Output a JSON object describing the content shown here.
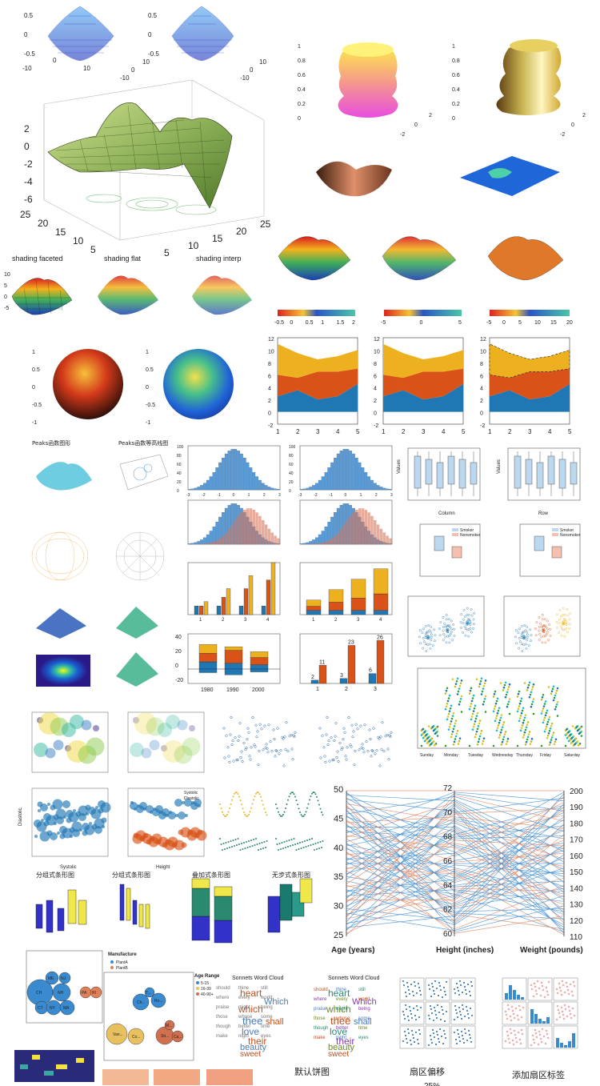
{
  "chart_data": [
    {
      "type": "surface",
      "panel": "mesh-pair-top-left",
      "z_ticks": [
        "0.5",
        "0",
        "-0.5"
      ],
      "x_ticks": [
        "-10",
        "0",
        "10"
      ],
      "y_ticks": [
        "-10",
        "0",
        "10"
      ]
    },
    {
      "type": "surface",
      "panel": "big-peaks-surface-with-contour",
      "z_ticks": [
        "2",
        "0",
        "-2",
        "-4",
        "-6"
      ],
      "y_ticks": [
        "25",
        "20",
        "15",
        "10",
        "5"
      ],
      "x_ticks": [
        "5",
        "10",
        "15",
        "20",
        "25"
      ]
    },
    {
      "type": "surface",
      "panel": "shading-modes",
      "titles": [
        "shading faceted",
        "shading flat",
        "shading interp"
      ],
      "z_ticks": [
        "10",
        "5",
        "0",
        "-5"
      ]
    },
    {
      "type": "surface",
      "panel": "spheres",
      "z_ticks": [
        "1",
        "0.5",
        "0",
        "-0.5",
        "-1"
      ]
    },
    {
      "type": "surface",
      "panel": "revolution-surfaces",
      "z_ticks": [
        "1",
        "0.8",
        "0.6",
        "0.4",
        "0.2",
        "0"
      ],
      "x_ticks": [
        "-2",
        "0",
        "2"
      ]
    },
    {
      "type": "surface",
      "panel": "peaks-colorbars",
      "colorbars": [
        [
          "-0.5",
          "0",
          "0.5",
          "1",
          "1.5",
          "2"
        ],
        [
          "-5",
          "0",
          "5"
        ],
        [
          "-5",
          "0",
          "5",
          "10",
          "15",
          "20"
        ]
      ]
    },
    {
      "type": "area",
      "panel": "stacked-area-x3",
      "categories": [
        1,
        2,
        3,
        4,
        5
      ],
      "ylim": [
        -2,
        12
      ],
      "y_ticks": [
        "12",
        "10",
        "8",
        "6",
        "4",
        "2",
        "0",
        "-2"
      ],
      "series": [
        {
          "values": [
            2.5,
            3.5,
            2,
            2.5,
            4.5
          ]
        },
        {
          "values": [
            3.5,
            2,
            4.5,
            4,
            2.5
          ]
        },
        {
          "values": [
            5,
            4,
            2,
            2.5,
            3
          ]
        }
      ]
    },
    {
      "type": "surface",
      "panel": "peaks-small",
      "titles": [
        "Peaks函数图形",
        "Peaks函数等高线图"
      ]
    },
    {
      "type": "histogram",
      "panel": "normal-histograms",
      "y_ticks": [
        "100",
        "80",
        "60",
        "40",
        "20",
        "0"
      ],
      "x_ticks": [
        "-3",
        "-2",
        "-1",
        "0",
        "1",
        "2",
        "3"
      ]
    },
    {
      "type": "box",
      "panel": "boxplots",
      "x_labels": [
        "Column",
        "Row"
      ],
      "y_label": "Values",
      "legend": [
        "Smoker",
        "Nonsmoker"
      ]
    },
    {
      "type": "bar",
      "panel": "grouped-bar-1",
      "categories": [
        "1",
        "2",
        "3",
        "4"
      ],
      "series": [
        {
          "values": [
            2,
            2,
            2,
            2
          ]
        },
        {
          "values": [
            2,
            4,
            6,
            8
          ]
        },
        {
          "values": [
            3,
            6,
            9,
            12
          ]
        }
      ],
      "ylim": [
        0,
        12
      ]
    },
    {
      "type": "bar",
      "panel": "stacked-bar-1",
      "categories": [
        "1",
        "2",
        "3",
        "4"
      ],
      "series": [
        {
          "values": [
            2,
            2,
            2,
            2
          ]
        },
        {
          "values": [
            2,
            4,
            6,
            8
          ]
        },
        {
          "values": [
            3,
            6,
            9,
            12
          ]
        }
      ],
      "ylim": [
        0,
        25
      ]
    },
    {
      "type": "bar",
      "panel": "stacked-bar-negative",
      "categories": [
        "1980",
        "1990",
        "2000"
      ],
      "x_ticks": [
        "1980",
        "1990",
        "2000"
      ],
      "y_ticks": [
        "40",
        "20",
        "0",
        "-20"
      ]
    },
    {
      "type": "bar",
      "panel": "labeled-grouped-bar",
      "categories": [
        "1",
        "2",
        "3"
      ],
      "series": [
        {
          "values": [
            2,
            3,
            6
          ]
        },
        {
          "values": [
            11,
            23,
            26
          ]
        }
      ],
      "data_labels": [
        "2",
        "11",
        "3",
        "23",
        "6",
        "26"
      ],
      "ylim": [
        0,
        30
      ]
    },
    {
      "type": "scatter",
      "panel": "swarm-by-day",
      "categories": [
        "Sunday",
        "Monday",
        "Tuesday",
        "Wednesday",
        "Thursday",
        "Friday",
        "Saturday"
      ]
    },
    {
      "type": "scatter",
      "panel": "bubble-charts",
      "x_labels": [
        "Systolic",
        "Height"
      ],
      "y_label": "Diastolic",
      "legend": [
        "Systolic",
        "Diastolic"
      ]
    },
    {
      "type": "line",
      "panel": "parallel-coordinates",
      "axes": [
        "Age (years)",
        "Height (inches)",
        "Weight (pounds)"
      ],
      "age_ticks": [
        "50",
        "45",
        "40",
        "35",
        "30",
        "25"
      ],
      "height_ticks": [
        "72",
        "70",
        "68",
        "66",
        "64",
        "62",
        "60"
      ],
      "weight_ticks": [
        "200",
        "190",
        "180",
        "170",
        "160",
        "150",
        "140",
        "130",
        "120",
        "110"
      ]
    },
    {
      "type": "bar3",
      "panel": "3d-bars",
      "titles": [
        "分组式条形图",
        "分组式条形图",
        "叠加式条形图",
        "无步式条形图"
      ]
    },
    {
      "type": "bubble",
      "panel": "bubble-clouds",
      "bubbles_a": [
        "ME",
        "NJ",
        "CH",
        "NH",
        "PA",
        "RI",
        "CT",
        "NY",
        "MA"
      ],
      "legend_a_title": "Manufacture",
      "legend_a": [
        "PlantA",
        "PlantB"
      ],
      "bubbles_b": [
        "T...",
        "Ch...",
        "Ro...",
        "Van...",
        "Co...",
        "Str...",
        "M...",
        "Ca..."
      ],
      "legend_b_title": "Age Range",
      "legend_b": [
        "5-15",
        "16-39",
        "40-90+"
      ]
    },
    {
      "type": "wordcloud",
      "panel": "sonnets-word-cloud",
      "title": "Sonnets Word Cloud",
      "words": [
        "heart",
        "Which",
        "which",
        "thee",
        "shall",
        "love",
        "their",
        "beauty",
        "sweet",
        "should",
        "thine",
        "still",
        "where",
        "every",
        "world",
        "praise",
        "might",
        "being",
        "those",
        "whose",
        "some",
        "though",
        "better",
        "time",
        "make",
        "night",
        "eyes"
      ]
    },
    {
      "type": "scatter",
      "panel": "scatter-matrices"
    },
    {
      "type": "pie",
      "panel": "pie-captions",
      "captions": [
        "默认饼图",
        "扇区偏移",
        "添加扇区标签"
      ],
      "partial_label": "25%"
    }
  ]
}
